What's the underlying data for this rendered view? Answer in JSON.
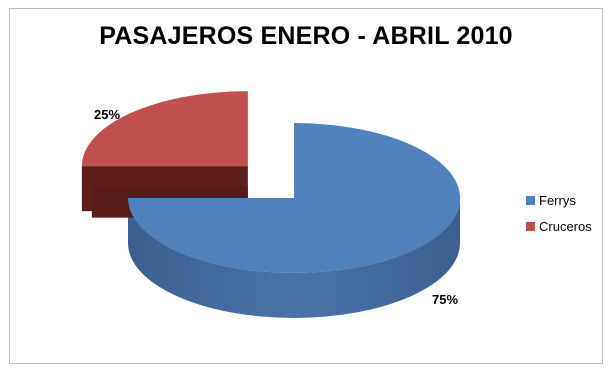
{
  "chart_data": {
    "type": "pie",
    "title": "PASAJEROS ENERO - ABRIL 2010",
    "categories": [
      "Ferrys",
      "Cruceros"
    ],
    "values": [
      75,
      25
    ],
    "data_labels": [
      "75%",
      "25%"
    ],
    "colors": [
      "#4F81BD",
      "#C0504D"
    ],
    "legend_position": "right",
    "exploded": true,
    "three_d": true
  }
}
